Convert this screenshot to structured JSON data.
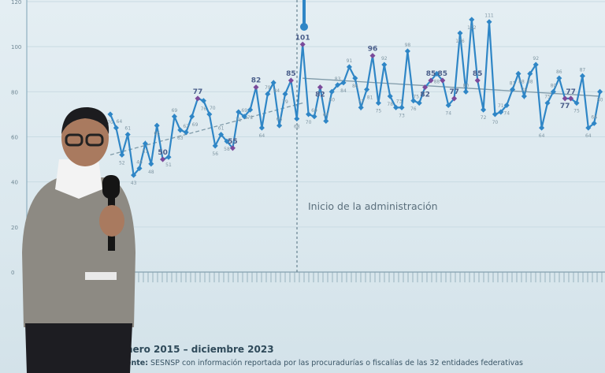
{
  "chart_data": {
    "type": "line",
    "ylim": [
      0,
      120
    ],
    "y_ticks": [
      "0",
      "20",
      "40",
      "60",
      "80",
      "100",
      "120"
    ],
    "grid": true,
    "annotation": "Inicio de la administración",
    "highlight_labels": [
      "50",
      "55",
      "101",
      "96",
      "85",
      "82",
      "77"
    ],
    "series": [
      {
        "values": [
          70,
          64,
          52,
          61,
          43,
          46,
          57,
          48,
          65,
          50,
          51,
          69,
          63,
          62,
          69,
          77,
          76,
          70,
          56,
          61,
          58,
          55,
          71,
          69,
          72,
          82,
          64,
          79,
          84,
          65,
          79,
          85,
          68,
          101,
          70,
          69,
          82,
          67,
          80,
          83,
          84,
          91,
          86,
          73,
          81,
          96,
          75,
          92,
          78,
          73,
          73,
          98,
          76,
          75,
          82,
          85,
          88,
          85,
          74,
          77,
          106,
          80,
          112,
          85,
          72,
          111,
          70,
          71,
          74,
          81,
          88,
          78,
          88,
          92,
          64,
          75,
          80,
          86,
          77,
          77,
          75,
          87,
          64,
          66,
          80
        ],
        "color": "#2f86c6"
      }
    ],
    "trend_color": "#7f9aa8"
  },
  "footer": {
    "period": "nero 2015 – diciembre 2023",
    "source_label": "ente:",
    "source_text": " SESNSP con información reportada por las procuradurías o fiscalías de las 32 entidades federativas"
  },
  "colors": {
    "line": "#2f86c6",
    "highlight": "#7b4a9a",
    "background": "#e1ecf1"
  }
}
